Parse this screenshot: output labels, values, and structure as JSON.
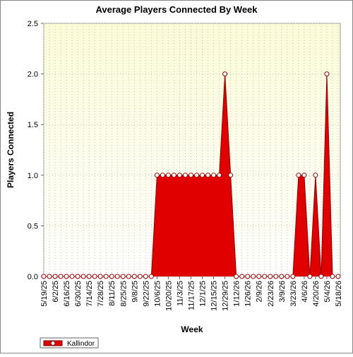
{
  "chart_data": {
    "type": "area",
    "title": "Average Players Connected By Week",
    "x_label": "Week",
    "y_label": "Players Connected",
    "categories": [
      "5/19/25",
      null,
      "6/2/25",
      null,
      "6/16/25",
      null,
      "6/30/25",
      null,
      "7/14/25",
      null,
      "7/28/25",
      null,
      "8/11/25",
      null,
      "8/25/25",
      null,
      "9/8/25",
      null,
      "9/22/25",
      null,
      "10/6/25",
      null,
      "10/20/25",
      null,
      "11/3/25",
      null,
      "11/17/25",
      null,
      "12/1/25",
      null,
      "12/15/25",
      null,
      "12/29/25",
      null,
      "1/12/26",
      null,
      "1/26/26",
      null,
      "2/9/26",
      null,
      "2/23/26",
      null,
      "3/9/26",
      null,
      "3/23/26",
      null,
      "4/6/26",
      null,
      "4/20/26",
      null,
      "5/4/26",
      null,
      "5/18/26"
    ],
    "series": [
      {
        "name": "Kallindor",
        "color": "#e00000",
        "values": [
          0,
          0,
          0,
          0,
          0,
          0,
          0,
          0,
          0,
          0,
          0,
          0,
          0,
          0,
          0,
          0,
          0,
          0,
          0,
          0,
          1,
          1,
          1,
          1,
          1,
          1,
          1,
          1,
          1,
          1,
          1,
          1,
          2,
          1,
          0,
          0,
          0,
          0,
          0,
          0,
          0,
          0,
          0,
          0,
          0,
          1,
          1,
          0,
          1,
          0,
          2,
          0,
          0
        ]
      }
    ],
    "ylim": [
      0,
      2.5
    ],
    "yticks": [
      {
        "value": 0,
        "label": "0.0"
      },
      {
        "value": 0.5,
        "label": "0.5"
      },
      {
        "value": 1,
        "label": "1.0"
      },
      {
        "value": 1.5,
        "label": "1.5"
      },
      {
        "value": 2,
        "label": "2.0"
      },
      {
        "value": 2.5,
        "label": "2.5"
      }
    ],
    "grid": true,
    "legend": "bottom-left"
  }
}
